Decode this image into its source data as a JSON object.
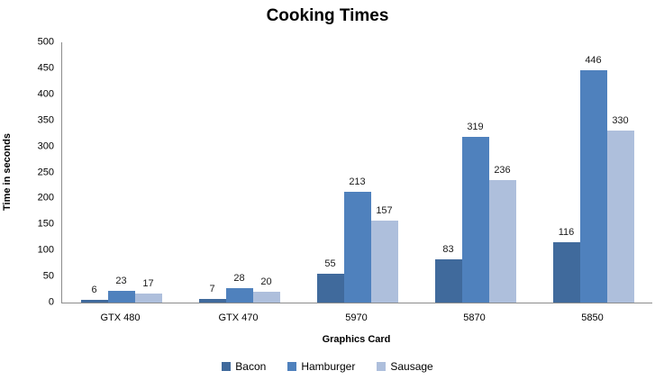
{
  "chart_data": {
    "type": "bar",
    "title": "Cooking Times",
    "xlabel": "Graphics Card",
    "ylabel": "Time in seconds",
    "categories": [
      "GTX 480",
      "GTX 470",
      "5970",
      "5870",
      "5850"
    ],
    "series": [
      {
        "name": "Bacon",
        "color": "#406A9C",
        "values": [
          6,
          7,
          55,
          83,
          116
        ]
      },
      {
        "name": "Hamburger",
        "color": "#4F81BD",
        "values": [
          23,
          28,
          213,
          319,
          446
        ]
      },
      {
        "name": "Sausage",
        "color": "#AEBFDC",
        "values": [
          17,
          20,
          157,
          236,
          330
        ]
      }
    ],
    "ylim": [
      0,
      500
    ],
    "ytick_step": 50,
    "grid": false,
    "legend_position": "bottom",
    "axis_color": "#8C8C8C",
    "background_color": "#FFFFFF"
  }
}
